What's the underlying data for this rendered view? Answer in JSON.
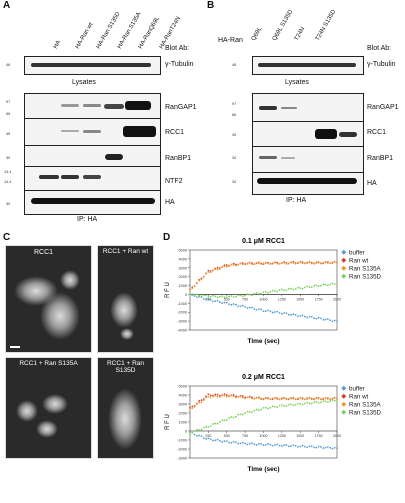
{
  "panels": {
    "A": "A",
    "B": "B",
    "C": "C",
    "D": "D"
  },
  "panelA": {
    "lanes": [
      "HA",
      "HA-Ran wt",
      "HA-Ran S135D",
      "HA-Ran S135A",
      "HA-RanQ69L",
      "HA-RanT24N"
    ],
    "blot_ab_label": "Blot Ab:",
    "lysate_rows": [
      "γ-Tubulin"
    ],
    "lysates_caption": "Lysates",
    "ip_rows": [
      "RanGAP1",
      "RCC1",
      "RanBP1",
      "NTF2",
      "HA"
    ],
    "ip_caption": "IP: HA"
  },
  "panelB": {
    "prefix": "HA-Ran",
    "lanes": [
      "Q69L",
      "Q69L S135D",
      "T24N",
      "T24N S135D"
    ],
    "blot_ab_label": "Blot Ab:",
    "lysate_rows": [
      "γ-Tubulin"
    ],
    "lysates_caption": "Lysates",
    "ip_rows": [
      "RanGAP1",
      "RCC1",
      "RanBP1",
      "HA"
    ],
    "ip_caption": "IP: HA"
  },
  "panelC": {
    "images": [
      "RCC1",
      "RCC1 + Ran wt",
      "RCC1 + Ran S135A",
      "RCC1 + Ran S135D"
    ]
  },
  "chart_data": [
    {
      "type": "scatter",
      "title": "0.1 μM RCC1",
      "xlabel": "Time (sec)",
      "ylabel": "R F U",
      "xlim": [
        0,
        2000
      ],
      "ylim": [
        -4000,
        5000
      ],
      "xticks": [
        "250",
        "500",
        "750",
        "1000",
        "1250",
        "1500",
        "1750",
        "2000"
      ],
      "yticks": [
        "5000",
        "4000",
        "3000",
        "2000",
        "1000",
        "0",
        "-1000",
        "-2000",
        "-3000",
        "-4000"
      ],
      "legend": [
        "buffer",
        "Ran wt",
        "Ran S135A",
        "Ran S135D"
      ],
      "legend_position": "right",
      "colors": [
        "#5b9bd5",
        "#d43c32",
        "#f0962d",
        "#7ed05c"
      ],
      "series": [
        {
          "name": "buffer",
          "x": [
            0,
            250,
            500,
            750,
            1000,
            1250,
            1500,
            1750,
            2000
          ],
          "y": [
            0,
            -600,
            -1000,
            -1400,
            -1800,
            -2100,
            -2400,
            -2700,
            -3000
          ]
        },
        {
          "name": "Ran wt",
          "x": [
            0,
            250,
            500,
            750,
            1000,
            1250,
            1500,
            1750,
            2000
          ],
          "y": [
            500,
            2600,
            3300,
            3500,
            3500,
            3550,
            3600,
            3550,
            3600
          ]
        },
        {
          "name": "Ran S135A",
          "x": [
            0,
            250,
            500,
            750,
            1000,
            1250,
            1500,
            1750,
            2000
          ],
          "y": [
            500,
            2500,
            3200,
            3450,
            3500,
            3500,
            3550,
            3550,
            3600
          ]
        },
        {
          "name": "Ran S135D",
          "x": [
            0,
            250,
            500,
            750,
            1000,
            1250,
            1500,
            1750,
            2000
          ],
          "y": [
            0,
            -200,
            -300,
            -100,
            200,
            500,
            700,
            1000,
            1200
          ]
        }
      ]
    },
    {
      "type": "scatter",
      "title": "0.2 μM RCC1",
      "xlabel": "Time (sec)",
      "ylabel": "R F U",
      "xlim": [
        0,
        2000
      ],
      "ylim": [
        -3000,
        5000
      ],
      "xticks": [
        "250",
        "500",
        "750",
        "1000",
        "1250",
        "1500",
        "1750",
        "2000"
      ],
      "yticks": [
        "5000",
        "4000",
        "3000",
        "2000",
        "1000",
        "0",
        "-1000",
        "-2000",
        "-3000"
      ],
      "legend": [
        "buffer",
        "Ran wt",
        "Ran S135A",
        "Ran S135D"
      ],
      "legend_position": "right",
      "colors": [
        "#5b9bd5",
        "#d43c32",
        "#f0962d",
        "#7ed05c"
      ],
      "series": [
        {
          "name": "buffer",
          "x": [
            0,
            250,
            500,
            750,
            1000,
            1250,
            1500,
            1750,
            2000
          ],
          "y": [
            -200,
            -900,
            -1200,
            -1400,
            -1500,
            -1600,
            -1700,
            -1800,
            -1900
          ]
        },
        {
          "name": "Ran wt",
          "x": [
            0,
            250,
            500,
            750,
            1000,
            1250,
            1500,
            1750,
            2000
          ],
          "y": [
            2500,
            4000,
            4000,
            3800,
            3600,
            3600,
            3600,
            3600,
            3600
          ]
        },
        {
          "name": "Ran S135A",
          "x": [
            0,
            250,
            500,
            750,
            1000,
            1250,
            1500,
            1750,
            2000
          ],
          "y": [
            2400,
            3800,
            3900,
            3700,
            3600,
            3600,
            3600,
            3600,
            3600
          ]
        },
        {
          "name": "Ran S135D",
          "x": [
            0,
            250,
            500,
            750,
            1000,
            1250,
            1500,
            1750,
            2000
          ],
          "y": [
            -200,
            500,
            1300,
            2000,
            2500,
            2800,
            3000,
            3200,
            3400
          ]
        }
      ]
    }
  ]
}
